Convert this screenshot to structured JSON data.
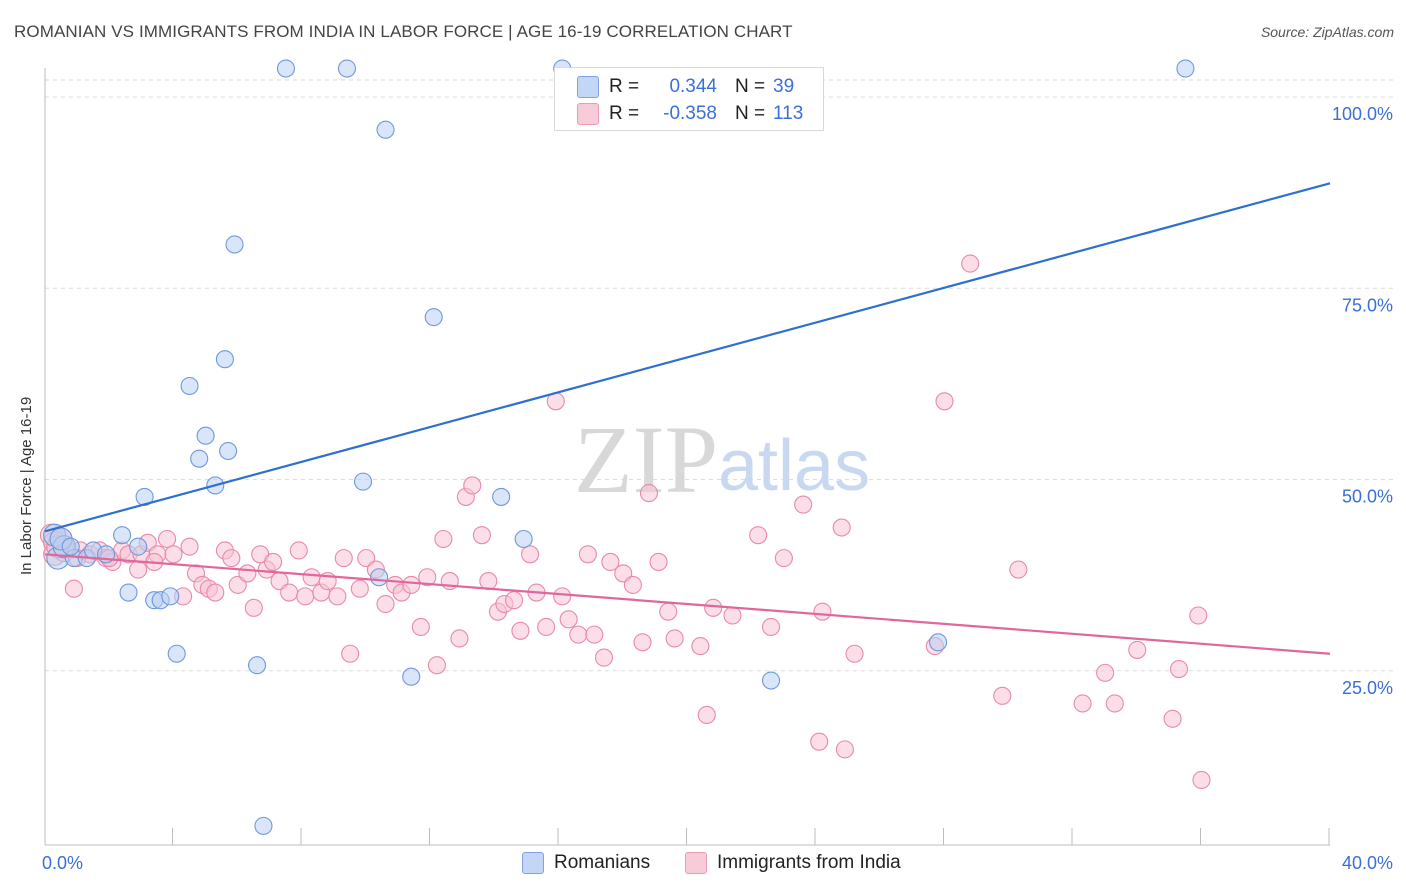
{
  "header": {
    "title": "ROMANIAN VS IMMIGRANTS FROM INDIA IN LABOR FORCE | AGE 16-19 CORRELATION CHART",
    "source": "Source: ZipAtlas.com"
  },
  "watermark": {
    "part1": "ZIP",
    "part2": "atlas"
  },
  "legend": {
    "rows": [
      {
        "r_label": "R =",
        "r_value": "0.344",
        "n_label": "N =",
        "n_value": "39"
      },
      {
        "r_label": "R =",
        "r_value": "-0.358",
        "n_label": "N =",
        "n_value": "113"
      }
    ],
    "bottom": [
      "Romanians",
      "Immigrants from India"
    ]
  },
  "colors": {
    "blue_fill": "#b9cff3",
    "blue_stroke": "#6f98dc",
    "blue_line": "#2f6fcf",
    "pink_fill": "#f7c3d3",
    "pink_stroke": "#e88aa8",
    "pink_line": "#e0679a",
    "axis_label": "#3a6fd8"
  },
  "chart_data": {
    "type": "scatter",
    "title": "ROMANIAN VS IMMIGRANTS FROM INDIA IN LABOR FORCE | AGE 16-19 CORRELATION CHART",
    "xlabel": "",
    "ylabel": "In Labor Force | Age 16-19",
    "xlim": [
      0,
      40
    ],
    "ylim": [
      0,
      100
    ],
    "x_tick_labels": [
      "0.0%",
      "40.0%"
    ],
    "y_tick_labels": [
      "100.0%",
      "75.0%",
      "50.0%",
      "25.0%"
    ],
    "y_ticks": [
      100,
      75,
      50,
      25
    ],
    "x_minor_ticks": [
      4,
      8,
      12,
      16,
      20,
      24,
      28,
      32,
      36,
      40
    ],
    "grid": true,
    "series": [
      {
        "name": "Romanians",
        "color": "#6f98dc",
        "r": 0.344,
        "n": 39,
        "trend": {
          "x0": 0,
          "y0": 41.0,
          "x1": 40,
          "y1": 86.5
        },
        "points": [
          [
            0.3,
            40.5
          ],
          [
            0.4,
            37.5
          ],
          [
            0.6,
            39.0
          ],
          [
            0.9,
            37.5
          ],
          [
            1.3,
            37.5
          ],
          [
            1.5,
            38.5
          ],
          [
            1.9,
            38.0
          ],
          [
            2.4,
            40.5
          ],
          [
            2.6,
            33.0
          ],
          [
            2.9,
            39.0
          ],
          [
            3.1,
            45.5
          ],
          [
            3.4,
            32.0
          ],
          [
            3.6,
            32.0
          ],
          [
            3.9,
            32.5
          ],
          [
            4.1,
            25.0
          ],
          [
            4.5,
            60.0
          ],
          [
            4.8,
            50.5
          ],
          [
            5.0,
            53.5
          ],
          [
            5.3,
            47.0
          ],
          [
            5.6,
            63.5
          ],
          [
            5.7,
            51.5
          ],
          [
            5.9,
            78.5
          ],
          [
            6.6,
            23.5
          ],
          [
            6.8,
            2.5
          ],
          [
            7.5,
            101.5
          ],
          [
            9.4,
            101.5
          ],
          [
            9.9,
            47.5
          ],
          [
            10.4,
            35.0
          ],
          [
            10.6,
            93.5
          ],
          [
            11.4,
            22.0
          ],
          [
            12.1,
            69.0
          ],
          [
            14.2,
            45.5
          ],
          [
            14.9,
            40.0
          ],
          [
            16.1,
            101.5
          ],
          [
            22.6,
            21.5
          ],
          [
            27.8,
            26.5
          ],
          [
            35.5,
            101.5
          ],
          [
            0.5,
            40.0
          ],
          [
            0.8,
            39.0
          ]
        ]
      },
      {
        "name": "Immigrants from India",
        "color": "#e88aa8",
        "r": -0.358,
        "n": 113,
        "trend": {
          "x0": 0,
          "y0": 38.0,
          "x1": 40,
          "y1": 25.0
        },
        "points": [
          [
            0.2,
            40.5
          ],
          [
            0.3,
            39.5
          ],
          [
            0.5,
            40.0
          ],
          [
            0.7,
            39.0
          ],
          [
            0.9,
            33.5
          ],
          [
            1.1,
            38.5
          ],
          [
            1.4,
            38.0
          ],
          [
            1.7,
            38.5
          ],
          [
            1.9,
            37.5
          ],
          [
            2.1,
            37.0
          ],
          [
            2.4,
            38.5
          ],
          [
            2.6,
            38.0
          ],
          [
            2.9,
            36.0
          ],
          [
            3.0,
            38.0
          ],
          [
            3.2,
            39.5
          ],
          [
            3.5,
            38.0
          ],
          [
            3.8,
            40.0
          ],
          [
            4.0,
            38.0
          ],
          [
            4.3,
            32.5
          ],
          [
            4.5,
            39.0
          ],
          [
            4.7,
            35.5
          ],
          [
            4.9,
            34.0
          ],
          [
            5.1,
            33.5
          ],
          [
            5.3,
            33.0
          ],
          [
            5.6,
            38.5
          ],
          [
            5.8,
            37.5
          ],
          [
            6.0,
            34.0
          ],
          [
            6.3,
            35.5
          ],
          [
            6.5,
            31.0
          ],
          [
            6.7,
            38.0
          ],
          [
            6.9,
            36.0
          ],
          [
            7.1,
            37.0
          ],
          [
            7.3,
            34.5
          ],
          [
            7.6,
            33.0
          ],
          [
            7.9,
            38.5
          ],
          [
            8.1,
            32.5
          ],
          [
            8.3,
            35.0
          ],
          [
            8.6,
            33.0
          ],
          [
            8.8,
            34.5
          ],
          [
            9.1,
            32.5
          ],
          [
            9.3,
            37.5
          ],
          [
            9.5,
            25.0
          ],
          [
            9.8,
            33.5
          ],
          [
            10.0,
            37.5
          ],
          [
            10.3,
            36.0
          ],
          [
            10.6,
            31.5
          ],
          [
            10.9,
            34.0
          ],
          [
            11.1,
            33.0
          ],
          [
            11.4,
            34.0
          ],
          [
            11.7,
            28.5
          ],
          [
            11.9,
            35.0
          ],
          [
            12.2,
            23.5
          ],
          [
            12.4,
            40.0
          ],
          [
            12.6,
            34.5
          ],
          [
            12.9,
            27.0
          ],
          [
            13.1,
            45.5
          ],
          [
            13.3,
            47.0
          ],
          [
            13.6,
            40.5
          ],
          [
            13.8,
            34.5
          ],
          [
            14.1,
            30.5
          ],
          [
            14.3,
            31.5
          ],
          [
            14.6,
            32.0
          ],
          [
            14.8,
            28.0
          ],
          [
            15.1,
            38.0
          ],
          [
            15.3,
            33.0
          ],
          [
            15.6,
            28.5
          ],
          [
            15.9,
            58.0
          ],
          [
            16.1,
            32.5
          ],
          [
            16.3,
            29.5
          ],
          [
            16.6,
            27.5
          ],
          [
            16.9,
            38.0
          ],
          [
            17.1,
            27.5
          ],
          [
            17.4,
            24.5
          ],
          [
            17.6,
            37.0
          ],
          [
            18.0,
            35.5
          ],
          [
            18.3,
            34.0
          ],
          [
            18.6,
            26.5
          ],
          [
            18.8,
            46.0
          ],
          [
            19.1,
            37.0
          ],
          [
            19.4,
            30.5
          ],
          [
            19.6,
            27.0
          ],
          [
            20.4,
            26.0
          ],
          [
            20.6,
            17.0
          ],
          [
            20.8,
            31.0
          ],
          [
            21.4,
            30.0
          ],
          [
            22.2,
            40.5
          ],
          [
            22.6,
            28.5
          ],
          [
            23.0,
            37.5
          ],
          [
            23.6,
            44.5
          ],
          [
            24.1,
            13.5
          ],
          [
            24.2,
            30.5
          ],
          [
            24.8,
            41.5
          ],
          [
            24.9,
            12.5
          ],
          [
            25.2,
            25.0
          ],
          [
            27.7,
            26.0
          ],
          [
            28.0,
            58.0
          ],
          [
            28.8,
            76.0
          ],
          [
            29.8,
            19.5
          ],
          [
            30.3,
            36.0
          ],
          [
            32.3,
            18.5
          ],
          [
            33.0,
            22.5
          ],
          [
            33.3,
            18.5
          ],
          [
            34.0,
            25.5
          ],
          [
            35.1,
            16.5
          ],
          [
            35.3,
            23.0
          ],
          [
            35.9,
            30.0
          ],
          [
            36.0,
            8.5
          ],
          [
            0.3,
            38.0
          ],
          [
            0.6,
            38.5
          ],
          [
            1.0,
            37.5
          ],
          [
            2.0,
            37.5
          ],
          [
            3.4,
            37.0
          ],
          [
            0.4,
            39.0
          ]
        ]
      }
    ]
  }
}
